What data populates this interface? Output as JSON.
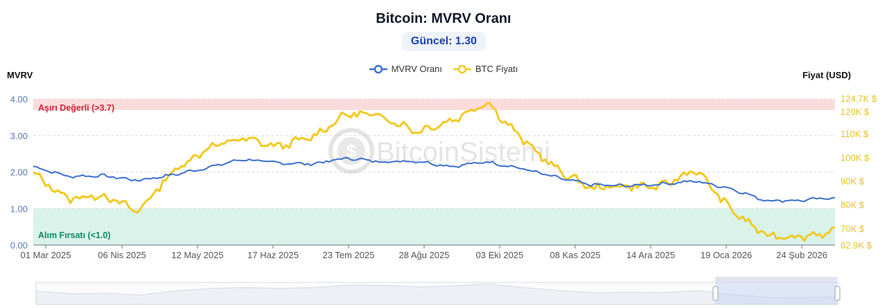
{
  "header": {
    "title": "Bitcoin: MVRV Oranı",
    "current_badge": "Güncel: 1.30"
  },
  "legend": [
    {
      "label": "MVRV Oranı",
      "color": "#3b6fd1"
    },
    {
      "label": "BTC Fiyatı",
      "color": "#f2c921"
    }
  ],
  "axes": {
    "left_title": "MVRV",
    "right_title": "Fiyat (USD)"
  },
  "watermark": "BitcoinSistemi",
  "colors": {
    "mvrv": "#3b6fd1",
    "price": "#f2c921",
    "overvalued_band": "#fbdcdc",
    "overvalued_text": "#d0243a",
    "buy_band": "#d9f3ea",
    "buy_text": "#0f8a5f",
    "left_tick": "#5b7bb5",
    "right_tick": "#e6c229"
  },
  "chart_data": {
    "type": "line",
    "title": "Bitcoin: MVRV Oranı",
    "subtitle": "Güncel: 1.30",
    "xlabel": "",
    "ylabel": "MVRV",
    "y2label": "Fiyat (USD)",
    "ylim": [
      0,
      4
    ],
    "y2lim": [
      62900,
      124700
    ],
    "yticks": [
      "0.00",
      "1.00",
      "2.00",
      "3.00",
      "4.00"
    ],
    "y2ticks": [
      "62.9K $",
      "70K $",
      "80K $",
      "90K $",
      "100K $",
      "110K $",
      "120K $",
      "124.7K $"
    ],
    "xticks": [
      "01 Mar 2025",
      "06 Nis 2025",
      "12 May 2025",
      "17 Haz 2025",
      "23 Tem 2025",
      "28 Ağu 2025",
      "03 Eki 2025",
      "08 Kas 2025",
      "14 Ara 2025",
      "19 Oca 2026",
      "24 Şub 2026"
    ],
    "grid": true,
    "legend_position": "top",
    "annotations": [
      {
        "label": "Aşırı Değerli (>3.7)",
        "band": [
          3.7,
          4.0
        ]
      },
      {
        "label": "Alım Fırsatı (<1.0)",
        "band": [
          0.0,
          1.0
        ]
      }
    ],
    "series": [
      {
        "name": "MVRV Oranı",
        "axis": "left",
        "x": [
          "01 Mar 2025",
          "15 Mar 2025",
          "01 Nis 2025",
          "10 Nis 2025",
          "25 Nis 2025",
          "12 May 2025",
          "30 May 2025",
          "17 Haz 2025",
          "05 Tem 2025",
          "23 Tem 2025",
          "10 Ağu 2025",
          "28 Ağu 2025",
          "15 Eyl 2025",
          "03 Eki 2025",
          "20 Eki 2025",
          "08 Kas 2025",
          "25 Kas 2025",
          "14 Ara 2025",
          "01 Oca 2026",
          "19 Oca 2026",
          "01 Şub 2026",
          "10 Şub 2026",
          "24 Şub 2026",
          "08 Mar 2026"
        ],
        "values": [
          2.15,
          1.88,
          1.9,
          1.77,
          1.92,
          2.12,
          2.35,
          2.25,
          2.22,
          2.38,
          2.28,
          2.3,
          2.15,
          2.28,
          2.1,
          1.85,
          1.65,
          1.62,
          1.67,
          1.75,
          1.55,
          1.22,
          1.22,
          1.3
        ]
      },
      {
        "name": "BTC Fiyatı",
        "axis": "right",
        "x": [
          "01 Mar 2025",
          "15 Mar 2025",
          "01 Nis 2025",
          "10 Nis 2025",
          "25 Nis 2025",
          "12 May 2025",
          "30 May 2025",
          "17 Haz 2025",
          "05 Tem 2025",
          "23 Tem 2025",
          "10 Ağu 2025",
          "28 Ağu 2025",
          "15 Eyl 2025",
          "03 Eki 2025",
          "20 Eki 2025",
          "08 Kas 2025",
          "25 Kas 2025",
          "14 Ara 2025",
          "01 Oca 2026",
          "19 Oca 2026",
          "01 Şub 2026",
          "10 Şub 2026",
          "24 Şub 2026",
          "08 Mar 2026"
        ],
        "values": [
          93000,
          82500,
          84000,
          77000,
          94000,
          104000,
          108000,
          104500,
          108500,
          118500,
          117500,
          111000,
          115500,
          123500,
          108000,
          95000,
          87000,
          88000,
          87500,
          95000,
          78000,
          67000,
          66500,
          68500
        ]
      }
    ],
    "navigator": {
      "selection_start": "01 Şub 2026",
      "selection_end": "08 Mar 2026"
    }
  }
}
